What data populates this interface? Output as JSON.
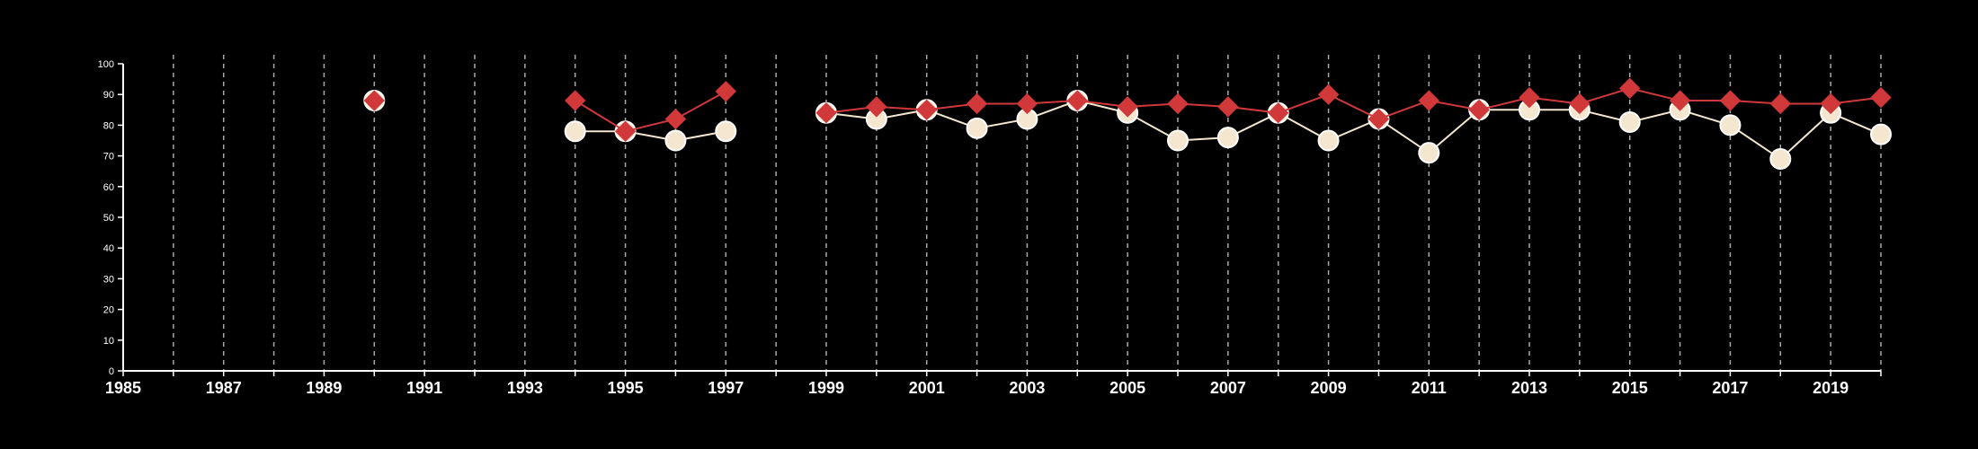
{
  "chart_data": {
    "type": "line",
    "title": "",
    "xlabel": "",
    "ylabel": "",
    "xlim": [
      1985,
      2020
    ],
    "ylim": [
      0,
      100
    ],
    "x_ticks": [
      1985,
      1987,
      1989,
      1991,
      1993,
      1995,
      1997,
      1999,
      2001,
      2003,
      2005,
      2007,
      2009,
      2011,
      2013,
      2015,
      2017,
      2019
    ],
    "y_ticks": [
      0,
      10,
      20,
      30,
      40,
      50,
      60,
      70,
      80,
      90,
      100
    ],
    "grid": "vertical dashed at every year",
    "legend": "none",
    "series": [
      {
        "color": "#f5e6cf",
        "marker": "circle",
        "points": [
          [
            1990,
            88
          ],
          [
            1994,
            78
          ],
          [
            1995,
            78
          ],
          [
            1996,
            75
          ],
          [
            1997,
            78
          ],
          [
            1999,
            84
          ],
          [
            2000,
            82
          ],
          [
            2001,
            85
          ],
          [
            2002,
            79
          ],
          [
            2003,
            82
          ],
          [
            2004,
            88
          ],
          [
            2005,
            84
          ],
          [
            2006,
            75
          ],
          [
            2007,
            76
          ],
          [
            2008,
            84
          ],
          [
            2009,
            75
          ],
          [
            2010,
            82
          ],
          [
            2011,
            71
          ],
          [
            2012,
            85
          ],
          [
            2013,
            85
          ],
          [
            2014,
            85
          ],
          [
            2015,
            81
          ],
          [
            2016,
            85
          ],
          [
            2017,
            80
          ],
          [
            2018,
            69
          ],
          [
            2019,
            84
          ],
          [
            2020,
            77
          ]
        ]
      },
      {
        "color": "#d0383a",
        "marker": "diamond",
        "points": [
          [
            1990,
            88
          ],
          [
            1994,
            88
          ],
          [
            1995,
            78
          ],
          [
            1996,
            82
          ],
          [
            1997,
            91
          ],
          [
            1999,
            84
          ],
          [
            2000,
            86
          ],
          [
            2001,
            85
          ],
          [
            2002,
            87
          ],
          [
            2003,
            87
          ],
          [
            2004,
            88
          ],
          [
            2005,
            86
          ],
          [
            2006,
            87
          ],
          [
            2007,
            86
          ],
          [
            2008,
            84
          ],
          [
            2009,
            90
          ],
          [
            2010,
            82
          ],
          [
            2011,
            88
          ],
          [
            2012,
            85
          ],
          [
            2013,
            89
          ],
          [
            2014,
            87
          ],
          [
            2015,
            92
          ],
          [
            2016,
            88
          ],
          [
            2017,
            88
          ],
          [
            2018,
            87
          ],
          [
            2019,
            87
          ],
          [
            2020,
            89
          ]
        ]
      }
    ]
  }
}
